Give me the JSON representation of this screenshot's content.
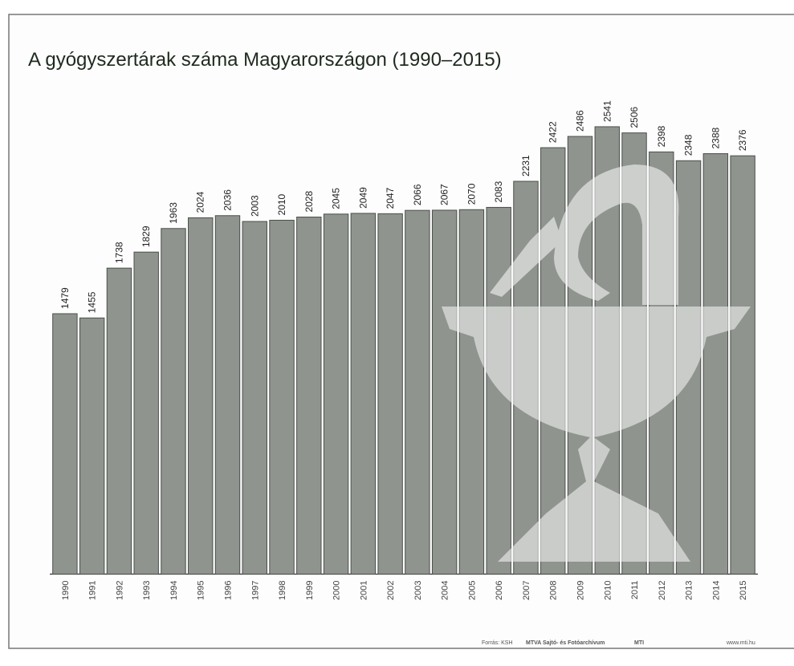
{
  "chart_data": {
    "type": "bar",
    "title": "A gyógyszertárak száma Magyarországon (1990–2015)",
    "categories": [
      "1990",
      "1991",
      "1992",
      "1993",
      "1994",
      "1995",
      "1996",
      "1997",
      "1998",
      "1999",
      "2000",
      "2001",
      "2002",
      "2003",
      "2004",
      "2005",
      "2006",
      "2007",
      "2008",
      "2009",
      "2010",
      "2011",
      "2012",
      "2013",
      "2014",
      "2015"
    ],
    "values": [
      1479,
      1455,
      1738,
      1829,
      1963,
      2024,
      2036,
      2003,
      2010,
      2028,
      2045,
      2049,
      2047,
      2066,
      2067,
      2070,
      2083,
      2231,
      2422,
      2486,
      2541,
      2506,
      2398,
      2348,
      2388,
      2376
    ],
    "color": "#8f948f",
    "ylim": [
      0,
      2600
    ],
    "source": [
      "Forrás: KSH",
      "MTVA Sajtó- és Fotóarchívum",
      "MTI",
      "www.mti.hu"
    ]
  }
}
